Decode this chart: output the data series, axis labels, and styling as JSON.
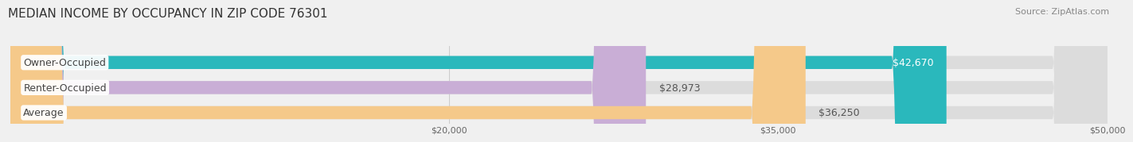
{
  "title": "MEDIAN INCOME BY OCCUPANCY IN ZIP CODE 76301",
  "source": "Source: ZipAtlas.com",
  "categories": [
    "Owner-Occupied",
    "Renter-Occupied",
    "Average"
  ],
  "values": [
    42670,
    28973,
    36250
  ],
  "labels": [
    "$42,670",
    "$28,973",
    "$36,250"
  ],
  "bar_colors": [
    "#2ab8bc",
    "#c9aed6",
    "#f5c98a"
  ],
  "background_color": "#f0f0f0",
  "bar_bg_color": "#dcdcdc",
  "xmin": 0,
  "xmax": 50000,
  "xticks": [
    20000,
    35000,
    50000
  ],
  "xtick_labels": [
    "$20,000",
    "$35,000",
    "$50,000"
  ],
  "title_fontsize": 11,
  "source_fontsize": 8,
  "label_fontsize": 9,
  "category_fontsize": 9
}
